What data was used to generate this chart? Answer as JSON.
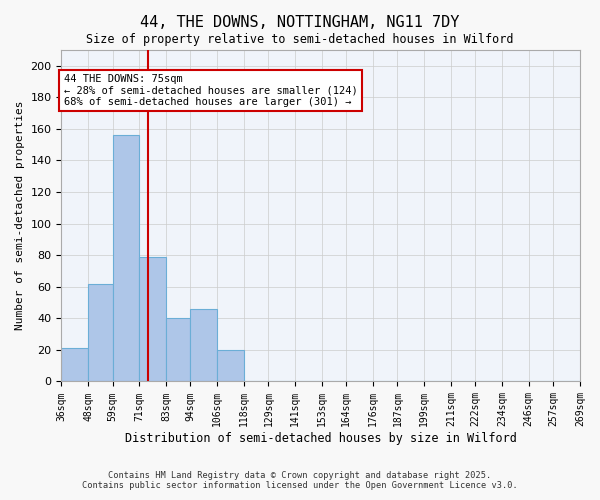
{
  "title_line1": "44, THE DOWNS, NOTTINGHAM, NG11 7DY",
  "title_line2": "Size of property relative to semi-detached houses in Wilford",
  "xlabel": "Distribution of semi-detached houses by size in Wilford",
  "ylabel": "Number of semi-detached properties",
  "bins": [
    36,
    48,
    59,
    71,
    83,
    94,
    106,
    118,
    129,
    141,
    153,
    164,
    176,
    187,
    199,
    211,
    222,
    234,
    246,
    257,
    269
  ],
  "bar_heights": [
    21,
    62,
    156,
    79,
    40,
    46,
    20,
    0,
    0,
    0,
    0,
    0,
    0,
    0,
    0,
    0,
    0,
    0,
    0,
    0
  ],
  "bar_color": "#aec6e8",
  "bar_edge_color": "#6baed6",
  "grid_color": "#cccccc",
  "background_color": "#f0f4fa",
  "property_size": 75,
  "vline_color": "#cc0000",
  "annotation_title": "44 THE DOWNS: 75sqm",
  "annotation_line1": "← 28% of semi-detached houses are smaller (124)",
  "annotation_line2": "68% of semi-detached houses are larger (301) →",
  "annotation_box_color": "#cc0000",
  "ylim": [
    0,
    210
  ],
  "yticks": [
    0,
    20,
    40,
    60,
    80,
    100,
    120,
    140,
    160,
    180,
    200
  ],
  "footnote_line1": "Contains HM Land Registry data © Crown copyright and database right 2025.",
  "footnote_line2": "Contains public sector information licensed under the Open Government Licence v3.0."
}
